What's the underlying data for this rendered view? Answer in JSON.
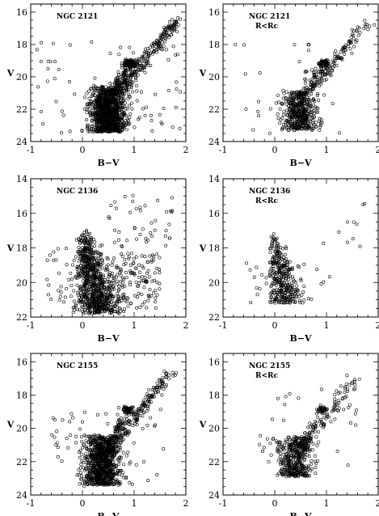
{
  "chart_data": [
    {
      "type": "scatter",
      "title": "NGC 2121",
      "subtitle": "",
      "xlabel": "B−V",
      "ylabel": "V",
      "xlim": [
        -1,
        2
      ],
      "ylim": [
        24,
        15.5
      ],
      "xticks": [
        "-1",
        "0",
        "1",
        "2"
      ],
      "yticks": [
        "16",
        "18",
        "20",
        "22",
        "24"
      ],
      "series": [
        {
          "components": [
            {
              "kind": "blob",
              "n": 1000,
              "x_mean": 0.5,
              "x_sd": 0.18,
              "y_min": 20.6,
              "y_max": 23.4
            },
            {
              "kind": "line",
              "n": 180,
              "x0": 0.35,
              "x1": 0.9,
              "y0": 22.5,
              "y1": 19.2,
              "sd": 0.08
            },
            {
              "kind": "rgb",
              "n": 220,
              "x0": 0.75,
              "x1": 1.85,
              "y0": 20.8,
              "y1": 16.4,
              "sd": 0.07
            },
            {
              "kind": "clump",
              "n": 90,
              "x_mean": 0.92,
              "y_mean": 19.15,
              "x_sd": 0.06,
              "y_sd": 0.12
            },
            {
              "kind": "field",
              "n": 70,
              "x_min": -0.9,
              "x_max": 1.9,
              "y_min": 17.5,
              "y_max": 23.5
            }
          ],
          "seed": 11
        }
      ]
    },
    {
      "type": "scatter",
      "title": "NGC 2121",
      "subtitle": "R<Rc",
      "xlabel": "B−V",
      "ylabel": "V",
      "xlim": [
        -1,
        2
      ],
      "ylim": [
        24,
        15.5
      ],
      "xticks": [
        "-1",
        "0",
        "1",
        "2"
      ],
      "yticks": [
        "16",
        "18",
        "20",
        "22",
        "24"
      ],
      "series": [
        {
          "components": [
            {
              "kind": "blob",
              "n": 420,
              "x_mean": 0.5,
              "x_sd": 0.16,
              "y_min": 20.8,
              "y_max": 23.3
            },
            {
              "kind": "line",
              "n": 90,
              "x0": 0.35,
              "x1": 0.9,
              "y0": 22.4,
              "y1": 19.3,
              "sd": 0.08
            },
            {
              "kind": "rgb",
              "n": 110,
              "x0": 0.75,
              "x1": 1.8,
              "y0": 20.7,
              "y1": 16.5,
              "sd": 0.07
            },
            {
              "kind": "clump",
              "n": 55,
              "x_mean": 0.95,
              "y_mean": 19.15,
              "x_sd": 0.06,
              "y_sd": 0.1
            },
            {
              "kind": "field",
              "n": 25,
              "x_min": -0.8,
              "x_max": 1.8,
              "y_min": 18.0,
              "y_max": 23.5
            }
          ],
          "seed": 23
        }
      ]
    },
    {
      "type": "scatter",
      "title": "NGC 2136",
      "subtitle": "",
      "xlabel": "B−V",
      "ylabel": "V",
      "xlim": [
        -1,
        2
      ],
      "ylim": [
        22,
        14
      ],
      "xticks": [
        "-1",
        "0",
        "1",
        "2"
      ],
      "yticks": [
        "14",
        "16",
        "18",
        "20",
        "22"
      ],
      "series": [
        {
          "components": [
            {
              "kind": "ms",
              "n": 750,
              "x_top": -0.02,
              "x_bot": 0.2,
              "y_top": 16.8,
              "y_bot": 21.8,
              "sd": 0.07,
              "spread_bot": 0.3
            },
            {
              "kind": "field",
              "n": 180,
              "x_min": 0.2,
              "x_max": 1.5,
              "y_min": 18.3,
              "y_max": 21.5
            },
            {
              "kind": "field",
              "n": 45,
              "x_min": 0.5,
              "x_max": 1.8,
              "y_min": 14.9,
              "y_max": 18.0
            },
            {
              "kind": "field",
              "n": 35,
              "x_min": -0.7,
              "x_max": 0.0,
              "y_min": 18.0,
              "y_max": 21.5
            }
          ],
          "seed": 37
        }
      ]
    },
    {
      "type": "scatter",
      "title": "NGC 2136",
      "subtitle": "R<Rc",
      "xlabel": "B−V",
      "ylabel": "V",
      "xlim": [
        -1,
        2
      ],
      "ylim": [
        22,
        14
      ],
      "xticks": [
        "-1",
        "0",
        "1",
        "2"
      ],
      "yticks": [
        "14",
        "16",
        "18",
        "20",
        "22"
      ],
      "series": [
        {
          "components": [
            {
              "kind": "ms",
              "n": 330,
              "x_top": -0.03,
              "x_bot": 0.12,
              "y_top": 17.0,
              "y_bot": 21.2,
              "sd": 0.06,
              "spread_bot": 0.22
            },
            {
              "kind": "field",
              "n": 30,
              "x_min": -0.6,
              "x_max": 1.2,
              "y_min": 18.5,
              "y_max": 21.2
            },
            {
              "kind": "field",
              "n": 10,
              "x_min": 0.8,
              "x_max": 1.8,
              "y_min": 15.3,
              "y_max": 18.0
            }
          ],
          "seed": 41
        }
      ]
    },
    {
      "type": "scatter",
      "title": "NGC 2155",
      "subtitle": "",
      "xlabel": "B−V",
      "ylabel": "V",
      "xlim": [
        -1,
        2
      ],
      "ylim": [
        24,
        15.5
      ],
      "xticks": [
        "-1",
        "0",
        "1",
        "2"
      ],
      "yticks": [
        "16",
        "18",
        "20",
        "22",
        "24"
      ],
      "series": [
        {
          "components": [
            {
              "kind": "blob",
              "n": 850,
              "x_mean": 0.38,
              "x_sd": 0.17,
              "y_min": 20.4,
              "y_max": 23.4
            },
            {
              "kind": "line",
              "n": 120,
              "x0": 0.5,
              "x1": 0.8,
              "y0": 21.6,
              "y1": 19.5,
              "sd": 0.07
            },
            {
              "kind": "rgb",
              "n": 140,
              "x0": 0.75,
              "x1": 1.7,
              "y0": 20.5,
              "y1": 16.6,
              "sd": 0.07
            },
            {
              "kind": "clump",
              "n": 60,
              "x_mean": 0.88,
              "y_mean": 18.9,
              "x_sd": 0.05,
              "y_sd": 0.12
            },
            {
              "kind": "field",
              "n": 70,
              "x_min": -0.6,
              "x_max": 1.6,
              "y_min": 18.5,
              "y_max": 23.5
            }
          ],
          "seed": 53
        }
      ]
    },
    {
      "type": "scatter",
      "title": "NGC 2155",
      "subtitle": "R<Rc",
      "xlabel": "B−V",
      "ylabel": "V",
      "xlim": [
        -1,
        2
      ],
      "ylim": [
        24,
        15.5
      ],
      "xticks": [
        "-1",
        "0",
        "1",
        "2"
      ],
      "yticks": [
        "16",
        "18",
        "20",
        "22",
        "24"
      ],
      "series": [
        {
          "components": [
            {
              "kind": "blob",
              "n": 380,
              "x_mean": 0.4,
              "x_sd": 0.15,
              "y_min": 20.5,
              "y_max": 22.9
            },
            {
              "kind": "line",
              "n": 60,
              "x0": 0.5,
              "x1": 0.8,
              "y0": 21.3,
              "y1": 19.5,
              "sd": 0.06
            },
            {
              "kind": "rgb",
              "n": 60,
              "x0": 0.8,
              "x1": 1.6,
              "y0": 20.3,
              "y1": 16.8,
              "sd": 0.07
            },
            {
              "kind": "clump",
              "n": 35,
              "x_mean": 0.9,
              "y_mean": 18.9,
              "x_sd": 0.05,
              "y_sd": 0.1
            },
            {
              "kind": "field",
              "n": 40,
              "x_min": -0.3,
              "x_max": 1.6,
              "y_min": 17.5,
              "y_max": 22.5
            }
          ],
          "seed": 67
        }
      ]
    }
  ]
}
